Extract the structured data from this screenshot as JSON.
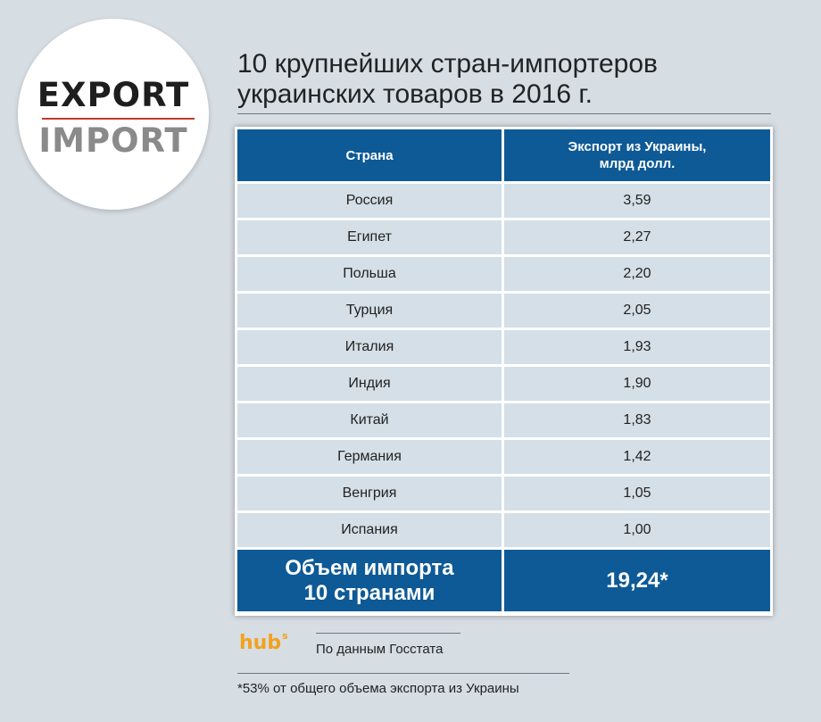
{
  "logo": {
    "top": "EXPORT",
    "bottom": "IMPORT"
  },
  "title": {
    "line1": "10 крупнейших стран-импортеров",
    "line2": "украинских товаров в 2016 г."
  },
  "table": {
    "headers": [
      "Страна",
      "Экспорт из Украины,\nмлрд долл."
    ],
    "rows": [
      {
        "country": "Россия",
        "value": "3,59"
      },
      {
        "country": "Египет",
        "value": "2,27"
      },
      {
        "country": "Польша",
        "value": "2,20"
      },
      {
        "country": "Турция",
        "value": "2,05"
      },
      {
        "country": "Италия",
        "value": "1,93"
      },
      {
        "country": "Индия",
        "value": "1,90"
      },
      {
        "country": "Китай",
        "value": "1,83"
      },
      {
        "country": "Германия",
        "value": "1,42"
      },
      {
        "country": "Венгрия",
        "value": "1,05"
      },
      {
        "country": "Испания",
        "value": "1,00"
      }
    ],
    "total": {
      "label": "Объем импорта\n10 странами",
      "value": "19,24*"
    }
  },
  "brand": {
    "name": "hub",
    "sup": "s"
  },
  "source": "По данным Госстата",
  "footnote": "*53% от общего объема экспорта из Украины",
  "colors": {
    "header_bg": "#0e5a96",
    "row_bg": "#d4dfe7",
    "page_bg": "#d6dde3",
    "brand": "#f2a21c",
    "logo_line": "#c0392b"
  }
}
